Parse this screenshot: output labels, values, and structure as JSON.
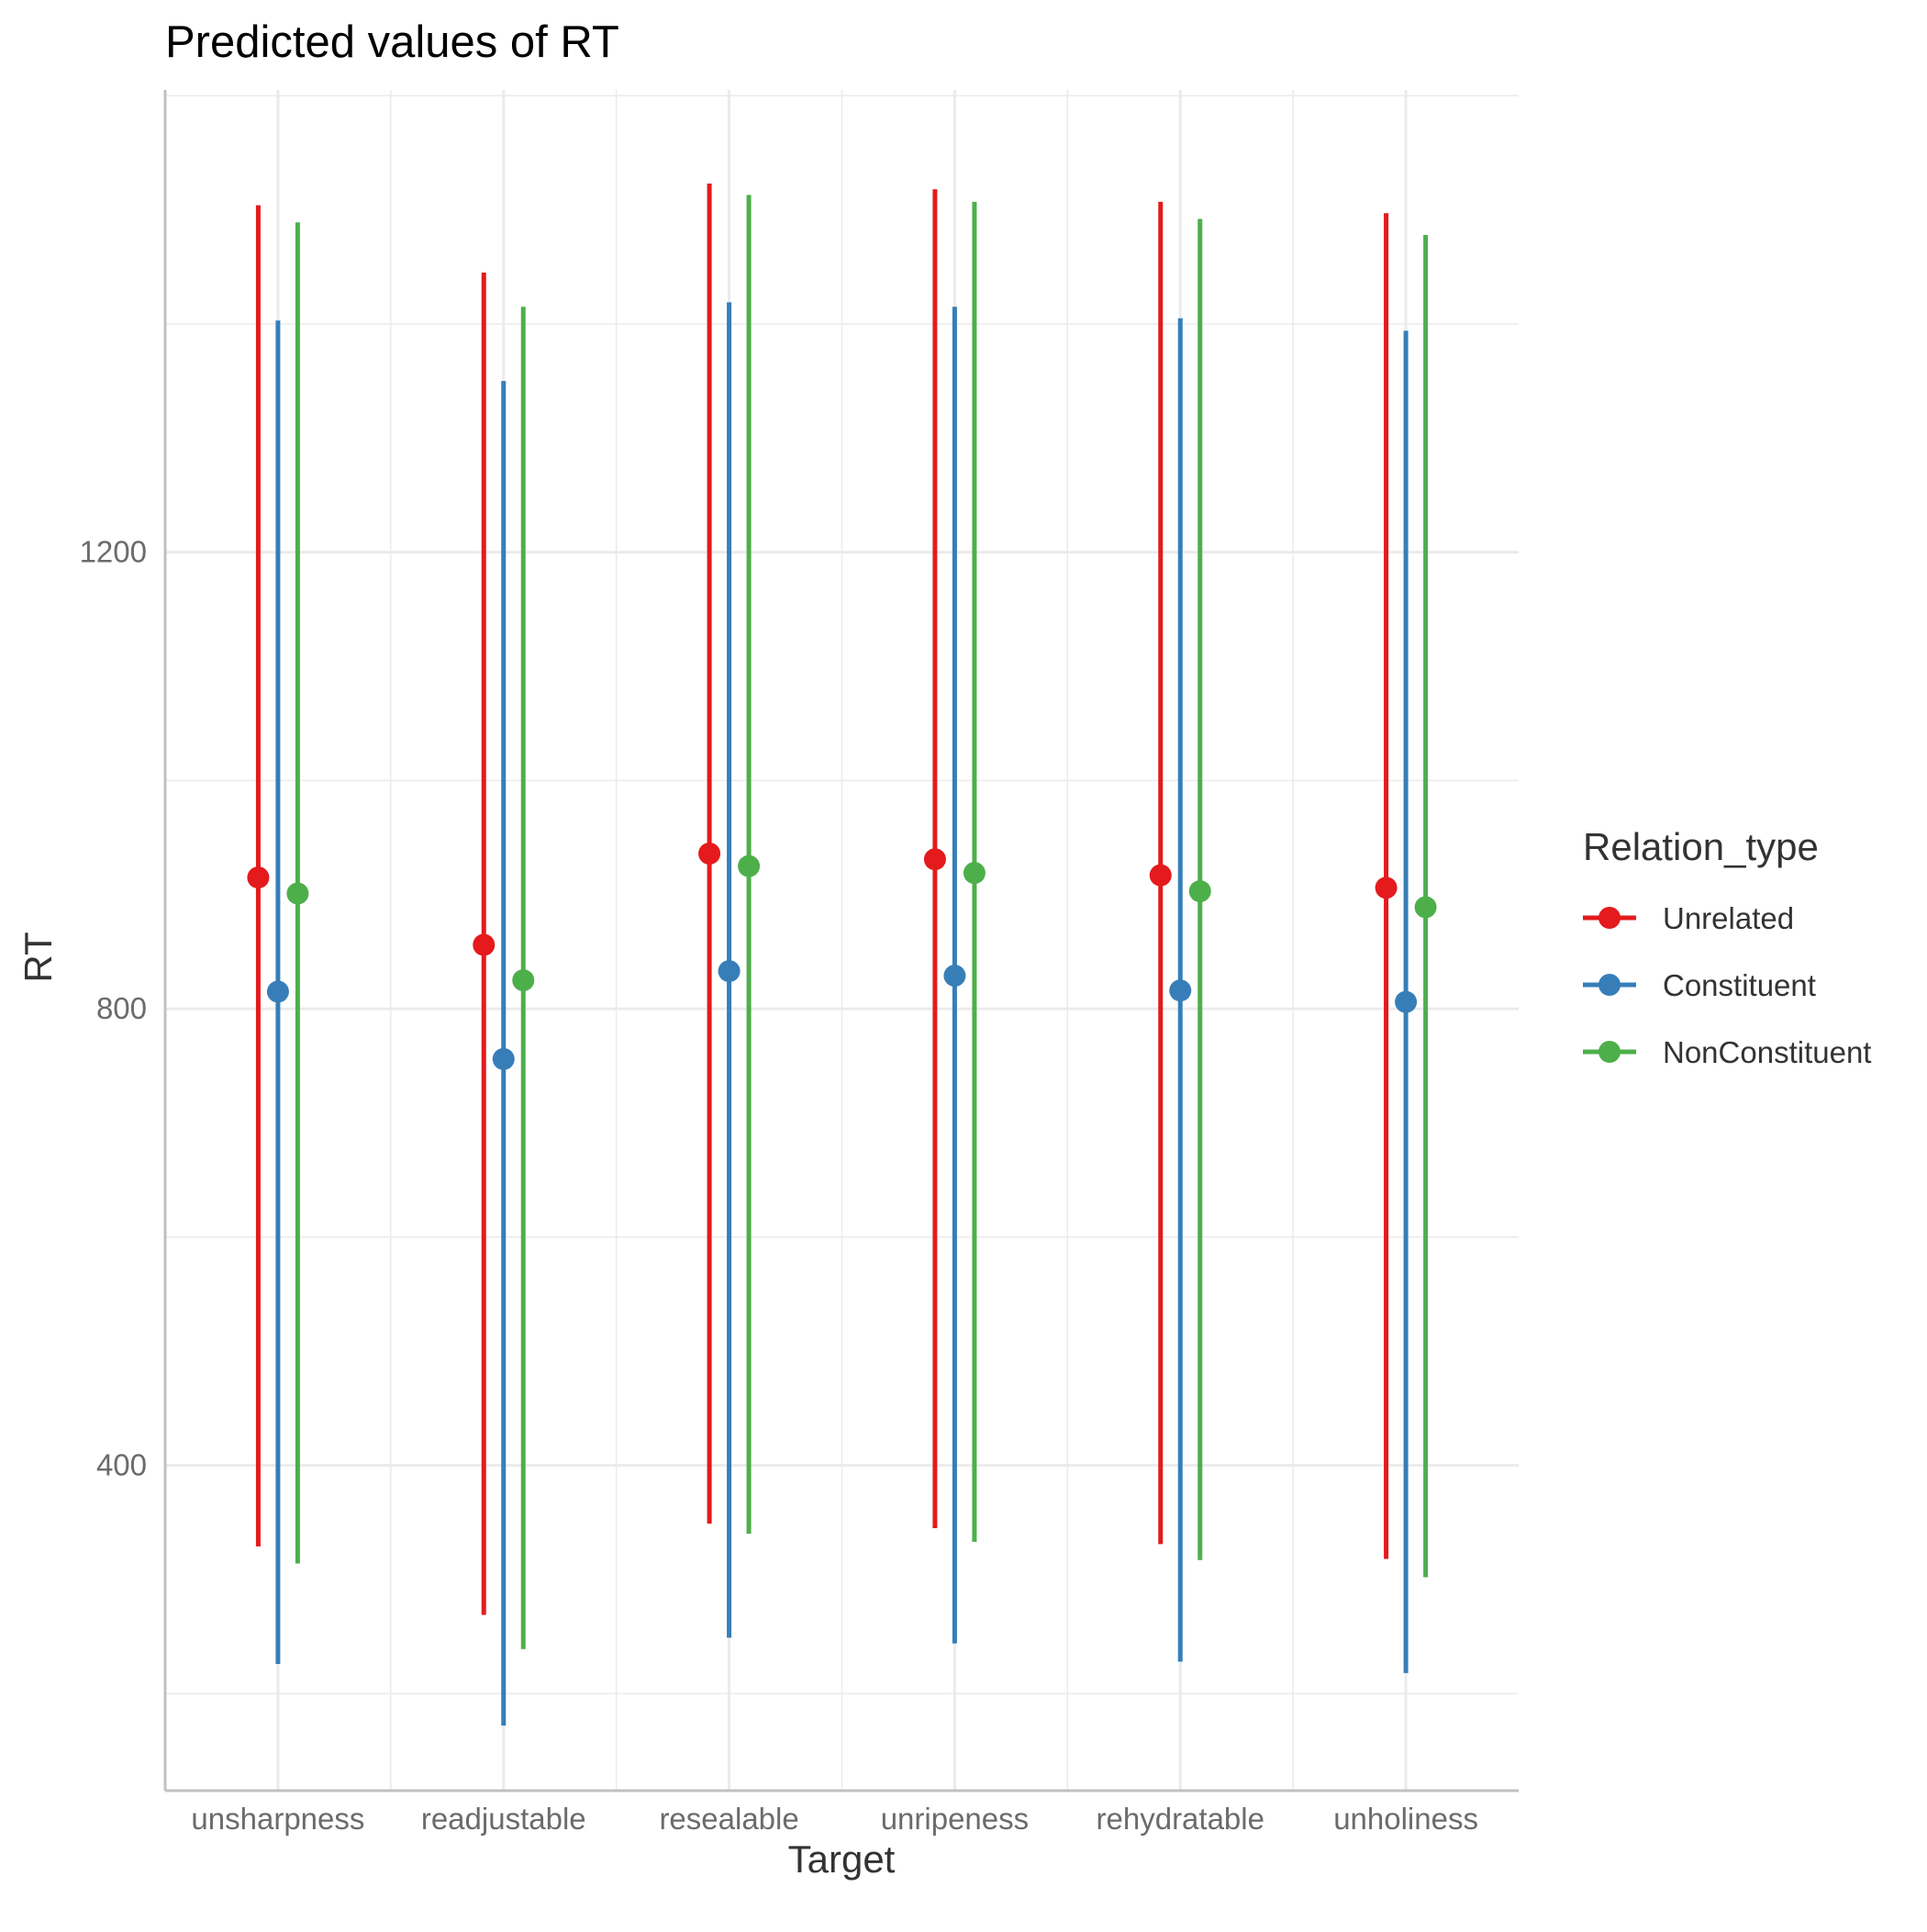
{
  "chart_data": {
    "type": "scatter",
    "title": "Predicted values of RT",
    "xlabel": "Target",
    "ylabel": "RT",
    "categories": [
      "unsharpness",
      "readjustable",
      "resealable",
      "unripeness",
      "rehydratable",
      "unholiness"
    ],
    "y_ticks": [
      400,
      800,
      1200
    ],
    "y_tick_labels": [
      "400",
      "800",
      "1200"
    ],
    "ylim": [
      115,
      1605
    ],
    "grid": true,
    "legend": {
      "title": "Relation_type",
      "placement": "right"
    },
    "series": [
      {
        "name": "Unrelated",
        "color": "#E41A1C",
        "values": [
          915,
          856,
          936,
          931,
          917,
          906
        ],
        "lower": [
          329,
          269,
          349,
          345,
          331,
          318
        ],
        "upper": [
          1504,
          1445,
          1523,
          1518,
          1507,
          1497
        ]
      },
      {
        "name": "Constituent",
        "color": "#377EB8",
        "values": [
          815,
          756,
          833,
          829,
          816,
          806
        ],
        "lower": [
          226,
          172,
          249,
          244,
          228,
          218
        ],
        "upper": [
          1403,
          1350,
          1419,
          1415,
          1405,
          1394
        ]
      },
      {
        "name": "NonConstituent",
        "color": "#4DAF4A",
        "values": [
          901,
          825,
          925,
          919,
          903,
          889
        ],
        "lower": [
          314,
          239,
          340,
          333,
          317,
          302
        ],
        "upper": [
          1489,
          1415,
          1513,
          1507,
          1492,
          1478
        ]
      }
    ]
  }
}
